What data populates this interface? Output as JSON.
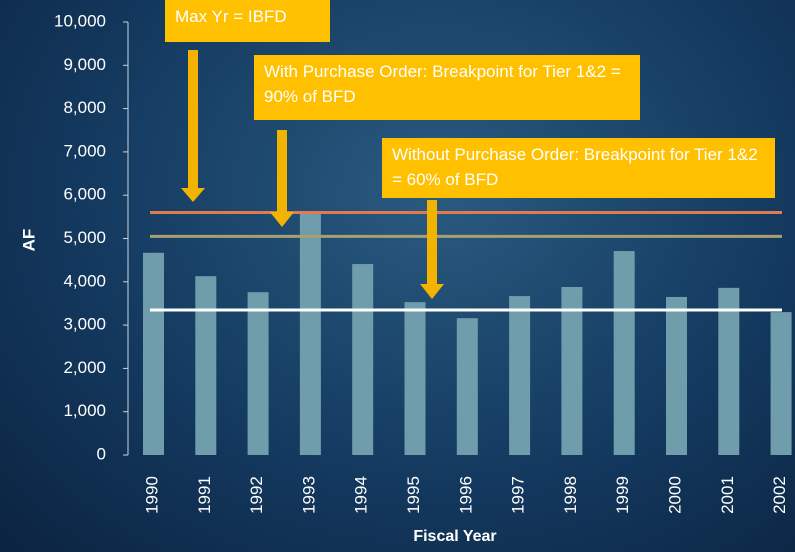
{
  "chart_data": {
    "type": "bar",
    "xlabel": "Fiscal Year",
    "ylabel": "AF",
    "categories": [
      "1990",
      "1991",
      "1992",
      "1993",
      "1994",
      "1995",
      "1996",
      "1997",
      "1998",
      "1999",
      "2000",
      "2001",
      "2002"
    ],
    "values": [
      4670,
      4130,
      3760,
      5590,
      4410,
      3530,
      3160,
      3670,
      3880,
      4710,
      3650,
      3860,
      3300
    ],
    "color": "#6f9dab",
    "ylim": [
      0,
      10000
    ],
    "yticks": [
      0,
      {
        "value": 1000,
        "label": "1,000"
      },
      {
        "value": 2000,
        "label": "2,000"
      },
      {
        "value": 3000,
        "label": "3,000"
      },
      {
        "value": 4000,
        "label": "4,000"
      },
      {
        "value": 5000,
        "label": "5,000"
      },
      {
        "value": 6000,
        "label": "6,000"
      },
      {
        "value": 7000,
        "label": "7,000"
      },
      {
        "value": 8000,
        "label": "8,000"
      },
      {
        "value": 9000,
        "label": "9,000"
      },
      {
        "value": 10000,
        "label": "10,000"
      }
    ],
    "reference_lines": [
      {
        "value": 5600,
        "color": "#e07a50"
      },
      {
        "value": 5050,
        "color": "#a8a070"
      },
      {
        "value": 3350,
        "color": "#ffffff"
      }
    ],
    "annotations": [
      "Max Yr = IBFD",
      "With Purchase Order: Breakpoint for Tier 1&2 = 90% of BFD",
      "Without Purchase Order: Breakpoint for Tier 1&2 = 60% of BFD"
    ]
  }
}
